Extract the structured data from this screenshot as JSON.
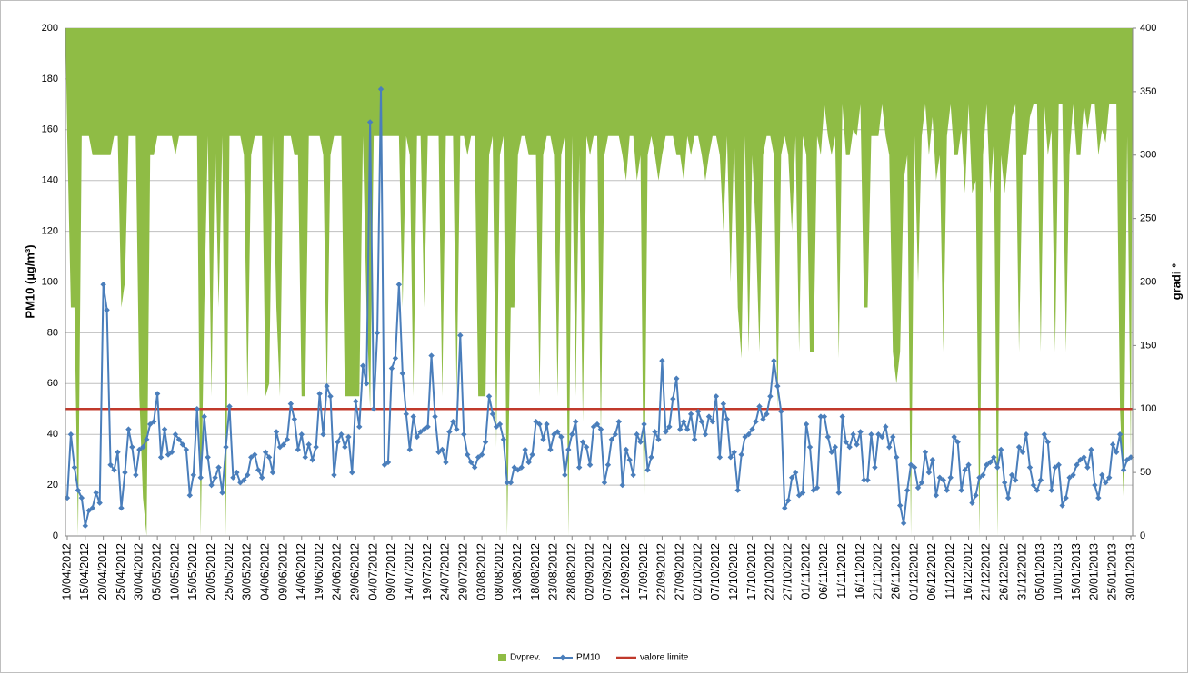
{
  "chart_data": {
    "type": "combo",
    "y_label": "PM10 (µg/m³)",
    "y2_label": "gradi °",
    "ylim": [
      0,
      200
    ],
    "yticks": [
      0,
      20,
      40,
      60,
      80,
      100,
      120,
      140,
      160,
      180,
      200
    ],
    "y2lim": [
      0,
      400
    ],
    "y2ticks": [
      0,
      50,
      100,
      150,
      200,
      250,
      300,
      350,
      400
    ],
    "grid": true,
    "legend": "bottom",
    "categories": [
      "10/04/2012",
      null,
      null,
      null,
      null,
      "15/04/2012",
      null,
      null,
      null,
      null,
      "20/04/2012",
      null,
      null,
      null,
      null,
      "25/04/2012",
      null,
      null,
      null,
      null,
      "30/04/2012",
      null,
      null,
      null,
      null,
      "05/05/2012",
      null,
      null,
      null,
      null,
      "10/05/2012",
      null,
      null,
      null,
      null,
      "15/05/2012",
      null,
      null,
      null,
      null,
      "20/05/2012",
      null,
      null,
      null,
      null,
      "25/05/2012",
      null,
      null,
      null,
      null,
      "30/05/2012",
      null,
      null,
      null,
      null,
      "04/06/2012",
      null,
      null,
      null,
      null,
      "09/06/2012",
      null,
      null,
      null,
      null,
      "14/06/2012",
      null,
      null,
      null,
      null,
      "19/06/2012",
      null,
      null,
      null,
      null,
      "24/06/2012",
      null,
      null,
      null,
      null,
      "29/06/2012",
      null,
      null,
      null,
      null,
      "04/07/2012",
      null,
      null,
      null,
      null,
      "09/07/2012",
      null,
      null,
      null,
      null,
      "14/07/2012",
      null,
      null,
      null,
      null,
      "19/07/2012",
      null,
      null,
      null,
      null,
      "24/07/2012",
      null,
      null,
      null,
      null,
      "29/07/2012",
      null,
      null,
      null,
      null,
      "03/08/2012",
      null,
      null,
      null,
      null,
      "08/08/2012",
      null,
      null,
      null,
      null,
      "13/08/2012",
      null,
      null,
      null,
      null,
      "18/08/2012",
      null,
      null,
      null,
      null,
      "23/08/2012",
      null,
      null,
      null,
      null,
      "28/08/2012",
      null,
      null,
      null,
      null,
      "02/09/2012",
      null,
      null,
      null,
      null,
      "07/09/2012",
      null,
      null,
      null,
      null,
      "12/09/2012",
      null,
      null,
      null,
      null,
      "17/09/2012",
      null,
      null,
      null,
      null,
      "22/09/2012",
      null,
      null,
      null,
      null,
      "27/09/2012",
      null,
      null,
      null,
      null,
      "02/10/2012",
      null,
      null,
      null,
      null,
      "07/10/2012",
      null,
      null,
      null,
      null,
      "12/10/2012",
      null,
      null,
      null,
      null,
      "17/10/2012",
      null,
      null,
      null,
      null,
      "22/10/2012",
      null,
      null,
      null,
      null,
      "27/10/2012",
      null,
      null,
      null,
      null,
      "01/11/2012",
      null,
      null,
      null,
      null,
      "06/11/2012",
      null,
      null,
      null,
      null,
      "11/11/2012",
      null,
      null,
      null,
      null,
      "16/11/2012",
      null,
      null,
      null,
      null,
      "21/11/2012",
      null,
      null,
      null,
      null,
      "26/11/2012",
      null,
      null,
      null,
      null,
      "01/12/2012",
      null,
      null,
      null,
      null,
      "06/12/2012",
      null,
      null,
      null,
      null,
      "11/12/2012",
      null,
      null,
      null,
      null,
      "16/12/2012",
      null,
      null,
      null,
      null,
      "21/12/2012",
      null,
      null,
      null,
      null,
      "26/12/2012",
      null,
      null,
      null,
      null,
      "31/12/2012",
      null,
      null,
      null,
      null,
      "05/01/2013",
      null,
      null,
      null,
      null,
      "10/01/2013",
      null,
      null,
      null,
      null,
      "15/01/2013",
      null,
      null,
      null,
      null,
      "20/01/2013",
      null,
      null,
      null,
      null,
      "25/01/2013",
      null,
      null,
      null,
      null,
      "30/01/2013"
    ],
    "series": [
      {
        "name": "Dvprev.",
        "type": "area",
        "axis": "y2",
        "color": "#8fbc45",
        "values": [
          315,
          180,
          180,
          0,
          315,
          315,
          315,
          300,
          300,
          300,
          300,
          300,
          300,
          315,
          315,
          180,
          200,
          315,
          315,
          315,
          110,
          30,
          0,
          300,
          300,
          315,
          315,
          315,
          315,
          315,
          300,
          315,
          315,
          315,
          315,
          315,
          315,
          0,
          180,
          315,
          110,
          315,
          180,
          315,
          0,
          315,
          315,
          315,
          315,
          300,
          110,
          300,
          315,
          315,
          315,
          110,
          120,
          315,
          180,
          110,
          315,
          315,
          315,
          300,
          300,
          110,
          110,
          315,
          315,
          315,
          315,
          300,
          110,
          300,
          315,
          315,
          315,
          110,
          110,
          110,
          110,
          110,
          315,
          180,
          100,
          315,
          315,
          315,
          315,
          315,
          315,
          315,
          315,
          180,
          315,
          300,
          110,
          315,
          315,
          180,
          315,
          315,
          315,
          315,
          110,
          315,
          315,
          315,
          110,
          315,
          315,
          300,
          315,
          315,
          110,
          110,
          110,
          300,
          315,
          70,
          300,
          315,
          0,
          180,
          180,
          300,
          315,
          315,
          300,
          300,
          300,
          110,
          300,
          315,
          315,
          300,
          110,
          300,
          315,
          0,
          315,
          110,
          300,
          90,
          315,
          300,
          315,
          315,
          80,
          300,
          315,
          315,
          315,
          315,
          300,
          280,
          315,
          315,
          280,
          300,
          0,
          300,
          315,
          300,
          280,
          300,
          315,
          315,
          315,
          300,
          300,
          280,
          315,
          300,
          315,
          315,
          300,
          280,
          300,
          315,
          315,
          300,
          240,
          315,
          200,
          315,
          180,
          140,
          315,
          145,
          300,
          240,
          145,
          300,
          315,
          315,
          300,
          100,
          300,
          315,
          300,
          240,
          315,
          145,
          315,
          300,
          145,
          145,
          315,
          300,
          340,
          315,
          300,
          315,
          140,
          340,
          300,
          300,
          320,
          315,
          340,
          180,
          180,
          315,
          315,
          315,
          340,
          315,
          300,
          145,
          120,
          145,
          280,
          300,
          0,
          315,
          200,
          315,
          340,
          300,
          330,
          280,
          300,
          145,
          315,
          340,
          300,
          300,
          320,
          270,
          340,
          270,
          280,
          0,
          300,
          340,
          270,
          310,
          0,
          300,
          270,
          300,
          330,
          340,
          145,
          300,
          300,
          330,
          340,
          340,
          145,
          340,
          300,
          320,
          145,
          340,
          340,
          145,
          300,
          340,
          300,
          300,
          340,
          320,
          340,
          340,
          300,
          320,
          310,
          340,
          340,
          340,
          100,
          30,
          315,
          60
        ]
      },
      {
        "name": "PM10",
        "type": "line",
        "axis": "y",
        "color": "#4a7ebb",
        "values": [
          15,
          40,
          27,
          18,
          15,
          4,
          10,
          11,
          17,
          13,
          99,
          89,
          28,
          26,
          33,
          11,
          25,
          42,
          35,
          24,
          34,
          35,
          38,
          44,
          45,
          56,
          31,
          42,
          32,
          33,
          40,
          38,
          36,
          34,
          16,
          24,
          50,
          23,
          47,
          31,
          20,
          23,
          27,
          17,
          35,
          51,
          23,
          25,
          21,
          22,
          24,
          31,
          32,
          26,
          23,
          33,
          31,
          25,
          41,
          35,
          36,
          38,
          52,
          46,
          34,
          40,
          31,
          36,
          30,
          35,
          56,
          40,
          59,
          55,
          24,
          37,
          40,
          35,
          39,
          25,
          53,
          43,
          67,
          60,
          163,
          50,
          80,
          176,
          28,
          29,
          66,
          70,
          99,
          64,
          48,
          34,
          47,
          39,
          41,
          42,
          43,
          71,
          47,
          33,
          34,
          29,
          41,
          45,
          42,
          79,
          40,
          32,
          29,
          27,
          31,
          32,
          37,
          55,
          48,
          43,
          44,
          38,
          21,
          21,
          27,
          26,
          27,
          34,
          29,
          32,
          45,
          44,
          38,
          44,
          34,
          40,
          41,
          39,
          24,
          34,
          40,
          45,
          27,
          37,
          35,
          28,
          43,
          44,
          42,
          21,
          28,
          38,
          40,
          45,
          20,
          34,
          30,
          24,
          40,
          37,
          44,
          26,
          31,
          41,
          38,
          69,
          41,
          43,
          54,
          62,
          42,
          45,
          42,
          48,
          38,
          49,
          45,
          40,
          47,
          45,
          55,
          31,
          52,
          46,
          31,
          33,
          18,
          32,
          39,
          40,
          42,
          45,
          51,
          46,
          48,
          55,
          69,
          59,
          49,
          11,
          14,
          23,
          25,
          16,
          17,
          44,
          35,
          18,
          19,
          47,
          47,
          39,
          33,
          35,
          17,
          47,
          37,
          35,
          40,
          36,
          41,
          22,
          22,
          40,
          27,
          40,
          39,
          43,
          35,
          39,
          31,
          12,
          5,
          18,
          28,
          27,
          19,
          21,
          33,
          25,
          30,
          16,
          23,
          22,
          18,
          23,
          39,
          37,
          18,
          26,
          28,
          13,
          16,
          23,
          24,
          28,
          29,
          31,
          27,
          34,
          21,
          15,
          24,
          22,
          35,
          33,
          40,
          27,
          20,
          18,
          22,
          40,
          37,
          18,
          27,
          28,
          12,
          15,
          23,
          24,
          28,
          30,
          31,
          27,
          34,
          20,
          15,
          24,
          21,
          23,
          36,
          33,
          40,
          26,
          30,
          31
        ]
      }
    ],
    "reference_line": {
      "name": "valore limite",
      "color": "#c0392b",
      "value": 50
    }
  }
}
